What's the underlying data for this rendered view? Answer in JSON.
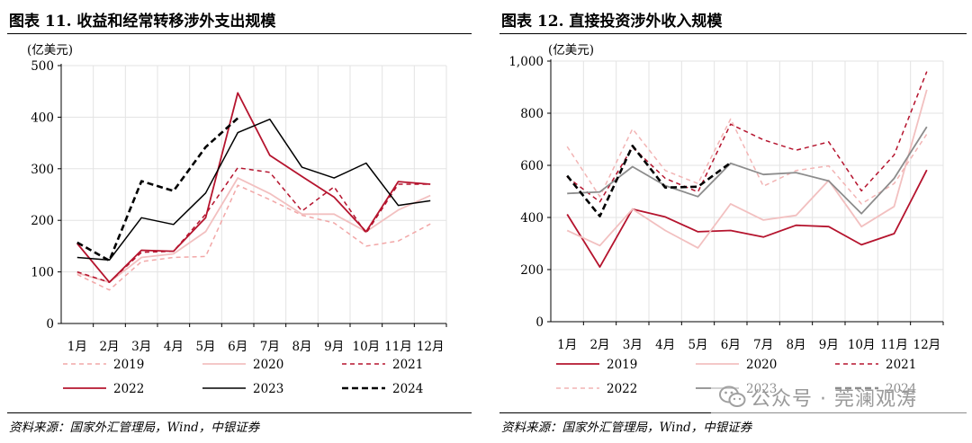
{
  "figures": [
    {
      "title": "图表 11. 收益和经常转移涉外支出规模",
      "source": "资料来源：国家外汇管理局，Wind，中银证券"
    },
    {
      "title": "图表 12. 直接投资涉外收入规模",
      "source": "资料来源：国家外汇管理局，Wind，中银证券"
    }
  ],
  "watermark": {
    "text": "公众号 · 莞澜观涛",
    "logo_icon": "wechat-icon"
  },
  "chart_data": [
    {
      "type": "line",
      "title": "图表 11. 收益和经常转移涉外支出规模",
      "ylabel": "(亿美元)",
      "ylim": [
        0,
        500
      ],
      "yticks": [
        0,
        100,
        200,
        300,
        400,
        500
      ],
      "ytick_labels": [
        "0",
        "100",
        "200",
        "300",
        "400",
        "500"
      ],
      "categories": [
        "1月",
        "2月",
        "3月",
        "4月",
        "5月",
        "6月",
        "7月",
        "8月",
        "9月",
        "10月",
        "11月",
        "12月"
      ],
      "grid": true,
      "legend": "bottom",
      "legend_columns": 3,
      "series": [
        {
          "name": "2019",
          "color": "#f2a7a7",
          "dash": "5,4",
          "width": 1.5,
          "values": [
            95,
            65,
            120,
            128,
            130,
            268,
            240,
            210,
            195,
            150,
            160,
            193
          ]
        },
        {
          "name": "2020",
          "color": "#f2c0c0",
          "dash": "",
          "width": 1.8,
          "values": [
            98,
            80,
            128,
            135,
            178,
            282,
            252,
            212,
            212,
            178,
            220,
            248
          ]
        },
        {
          "name": "2021",
          "color": "#b5142e",
          "dash": "5,4",
          "width": 1.5,
          "values": [
            100,
            80,
            138,
            140,
            212,
            302,
            293,
            218,
            265,
            175,
            270,
            270
          ]
        },
        {
          "name": "2022",
          "color": "#b5142e",
          "dash": "",
          "width": 1.8,
          "values": [
            155,
            80,
            142,
            140,
            205,
            447,
            326,
            285,
            245,
            178,
            275,
            270
          ]
        },
        {
          "name": "2023",
          "color": "#000000",
          "dash": "",
          "width": 1.5,
          "values": [
            128,
            123,
            205,
            192,
            253,
            370,
            396,
            303,
            282,
            311,
            229,
            238
          ]
        },
        {
          "name": "2024",
          "color": "#000000",
          "dash": "7,4",
          "width": 2.6,
          "values": [
            157,
            122,
            276,
            257,
            342,
            398,
            null,
            null,
            null,
            null,
            null,
            null
          ]
        }
      ]
    },
    {
      "type": "line",
      "title": "图表 12. 直接投资涉外收入规模",
      "ylabel": "(亿美元)",
      "ylim": [
        0,
        1000
      ],
      "yticks": [
        0,
        200,
        400,
        600,
        800,
        1000
      ],
      "ytick_labels": [
        "0",
        "200",
        "400",
        "600",
        "800",
        "1,000"
      ],
      "categories": [
        "1月",
        "2月",
        "3月",
        "4月",
        "5月",
        "6月",
        "7月",
        "8月",
        "9月",
        "10月",
        "11月",
        "12月"
      ],
      "grid": true,
      "legend": "bottom",
      "legend_columns": 3,
      "series": [
        {
          "name": "2019",
          "color": "#b5142e",
          "dash": "",
          "width": 1.8,
          "values": [
            412,
            210,
            432,
            402,
            345,
            350,
            325,
            370,
            365,
            295,
            338,
            582
          ]
        },
        {
          "name": "2020",
          "color": "#f2c0c0",
          "dash": "",
          "width": 1.8,
          "values": [
            350,
            292,
            432,
            350,
            283,
            452,
            390,
            408,
            542,
            365,
            442,
            890
          ]
        },
        {
          "name": "2021",
          "color": "#b5142e",
          "dash": "5,4",
          "width": 1.5,
          "values": [
            555,
            460,
            670,
            550,
            498,
            758,
            698,
            658,
            690,
            502,
            640,
            960
          ]
        },
        {
          "name": "2022",
          "color": "#f2b4b4",
          "dash": "5,4",
          "width": 1.5,
          "values": [
            672,
            480,
            740,
            580,
            530,
            778,
            520,
            580,
            598,
            452,
            530,
            720
          ]
        },
        {
          "name": "2023",
          "color": "#8c8c8c",
          "dash": "",
          "width": 1.8,
          "values": [
            492,
            498,
            595,
            522,
            480,
            608,
            565,
            572,
            540,
            415,
            550,
            748
          ]
        },
        {
          "name": "2024",
          "color": "#000000",
          "dash": "7,4",
          "width": 2.6,
          "values": [
            560,
            405,
            675,
            515,
            518,
            610,
            null,
            null,
            null,
            null,
            null,
            null
          ]
        }
      ]
    }
  ]
}
